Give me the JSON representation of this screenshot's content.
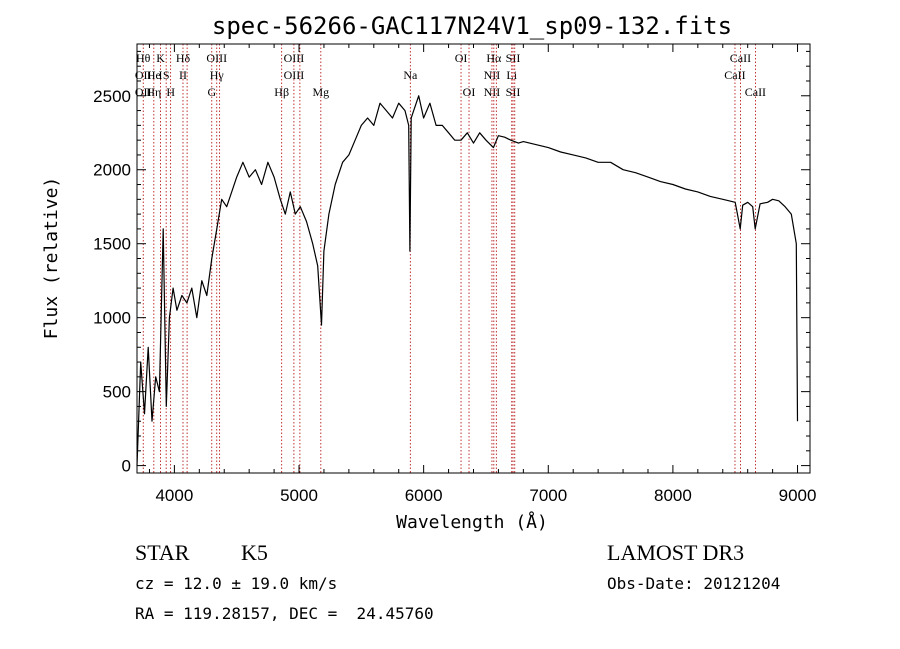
{
  "chart_data": {
    "type": "line",
    "title": "spec-56266-GAC117N24V1_sp09-132.fits",
    "xlabel": "Wavelength (Å)",
    "ylabel": "Flux (relative)",
    "xlim": [
      3700,
      9100
    ],
    "ylim": [
      -50,
      2850
    ],
    "xticks": [
      4000,
      5000,
      6000,
      7000,
      8000,
      9000
    ],
    "xtick_labels": [
      "4000",
      "5000",
      "6000",
      "7000",
      "8000",
      "9000"
    ],
    "yticks": [
      0,
      500,
      1000,
      1500,
      2000,
      2500
    ],
    "ytick_labels": [
      "0",
      "500",
      "1000",
      "1500",
      "2000",
      "2500"
    ],
    "grid": false,
    "series": [
      {
        "name": "spectrum",
        "color": "#000000",
        "x": [
          3700,
          3730,
          3760,
          3790,
          3820,
          3850,
          3880,
          3910,
          3935,
          3960,
          3990,
          4020,
          4060,
          4100,
          4140,
          4180,
          4220,
          4260,
          4300,
          4340,
          4380,
          4420,
          4460,
          4500,
          4550,
          4600,
          4650,
          4700,
          4750,
          4800,
          4850,
          4890,
          4930,
          4970,
          5010,
          5060,
          5110,
          5150,
          5180,
          5200,
          5240,
          5290,
          5350,
          5400,
          5450,
          5500,
          5550,
          5600,
          5650,
          5700,
          5750,
          5800,
          5850,
          5880,
          5890,
          5900,
          5920,
          5960,
          6000,
          6050,
          6100,
          6150,
          6200,
          6250,
          6300,
          6350,
          6400,
          6450,
          6500,
          6560,
          6600,
          6650,
          6700,
          6760,
          6800,
          6900,
          7000,
          7100,
          7200,
          7300,
          7400,
          7500,
          7600,
          7700,
          7800,
          7900,
          8000,
          8100,
          8200,
          8300,
          8400,
          8500,
          8540,
          8560,
          8600,
          8640,
          8660,
          8700,
          8760,
          8800,
          8850,
          8900,
          8950,
          8990,
          9000
        ],
        "y": [
          0,
          700,
          350,
          800,
          300,
          600,
          500,
          1600,
          400,
          1000,
          1200,
          1050,
          1150,
          1100,
          1200,
          1000,
          1250,
          1150,
          1400,
          1600,
          1800,
          1750,
          1850,
          1950,
          2050,
          1950,
          2000,
          1900,
          2050,
          1950,
          1800,
          1700,
          1850,
          1700,
          1750,
          1650,
          1500,
          1350,
          950,
          1450,
          1700,
          1900,
          2050,
          2100,
          2200,
          2300,
          2350,
          2300,
          2450,
          2400,
          2350,
          2450,
          2400,
          2300,
          1450,
          2350,
          2400,
          2500,
          2350,
          2450,
          2300,
          2300,
          2250,
          2200,
          2200,
          2250,
          2180,
          2250,
          2200,
          2150,
          2230,
          2220,
          2200,
          2180,
          2190,
          2170,
          2150,
          2120,
          2100,
          2080,
          2050,
          2050,
          2000,
          1980,
          1950,
          1920,
          1900,
          1870,
          1850,
          1820,
          1800,
          1780,
          1600,
          1760,
          1780,
          1750,
          1600,
          1770,
          1780,
          1800,
          1790,
          1750,
          1700,
          1500,
          300
        ]
      }
    ],
    "line_markers": [
      {
        "w": 3750,
        "rows": [
          {
            "row": 1,
            "text": "Hθ"
          },
          {
            "row": 2,
            "text": "OII"
          },
          {
            "row": 3,
            "text": "OII"
          }
        ]
      },
      {
        "w": 3835,
        "rows": [
          {
            "row": 2,
            "text": "He"
          },
          {
            "row": 3,
            "text": "Hη"
          }
        ]
      },
      {
        "w": 3889,
        "rows": [
          {
            "row": 1,
            "text": "K"
          },
          {
            "row": 2,
            "text": "I"
          }
        ]
      },
      {
        "w": 3934,
        "rows": [
          {
            "row": 2,
            "text": "S"
          }
        ]
      },
      {
        "w": 3970,
        "rows": [
          {
            "row": 3,
            "text": "H"
          }
        ]
      },
      {
        "w": 4069,
        "rows": [
          {
            "row": 1,
            "text": "Hδ"
          },
          {
            "row": 2,
            "text": "II"
          }
        ]
      },
      {
        "w": 4102,
        "rows": []
      },
      {
        "w": 4300,
        "rows": [
          {
            "row": 3,
            "text": "G"
          }
        ]
      },
      {
        "w": 4340,
        "rows": [
          {
            "row": 1,
            "text": "OIII"
          },
          {
            "row": 2,
            "text": "Hγ"
          }
        ]
      },
      {
        "w": 4363,
        "rows": []
      },
      {
        "w": 4861,
        "rows": [
          {
            "row": 3,
            "text": "Hβ"
          }
        ]
      },
      {
        "w": 4959,
        "rows": [
          {
            "row": 1,
            "text": "OIII"
          },
          {
            "row": 2,
            "text": "OIII"
          }
        ]
      },
      {
        "w": 5007,
        "rows": []
      },
      {
        "w": 5175,
        "rows": [
          {
            "row": 3,
            "text": "Mg"
          }
        ]
      },
      {
        "w": 5893,
        "rows": [
          {
            "row": 2,
            "text": "Na"
          }
        ]
      },
      {
        "w": 6300,
        "rows": [
          {
            "row": 1,
            "text": "OI"
          }
        ]
      },
      {
        "w": 6364,
        "rows": [
          {
            "row": 3,
            "text": "OI"
          }
        ]
      },
      {
        "w": 6548,
        "rows": [
          {
            "row": 2,
            "text": "NII"
          },
          {
            "row": 3,
            "text": "NII"
          }
        ]
      },
      {
        "w": 6563,
        "rows": [
          {
            "row": 1,
            "text": "Hα"
          }
        ]
      },
      {
        "w": 6583,
        "rows": []
      },
      {
        "w": 6707,
        "rows": [
          {
            "row": 2,
            "text": "Li"
          }
        ]
      },
      {
        "w": 6717,
        "rows": [
          {
            "row": 1,
            "text": "SII"
          },
          {
            "row": 3,
            "text": "SII"
          }
        ]
      },
      {
        "w": 6731,
        "rows": []
      },
      {
        "w": 8498,
        "rows": [
          {
            "row": 2,
            "text": "CaII"
          }
        ]
      },
      {
        "w": 8542,
        "rows": [
          {
            "row": 1,
            "text": "CaII"
          }
        ]
      },
      {
        "w": 8662,
        "rows": [
          {
            "row": 3,
            "text": "CaII"
          }
        ]
      }
    ],
    "annotations": {
      "class": "STAR",
      "subclass": "K5",
      "survey": "LAMOST DR3",
      "cz": "cz = 12.0 ± 19.0 km/s",
      "obs_date": "Obs-Date: 20121204",
      "radec": "RA = 119.28157, DEC =  24.45760"
    }
  },
  "colors": {
    "axis": "#000000",
    "marker_line": "#b00000",
    "background": "#ffffff"
  }
}
